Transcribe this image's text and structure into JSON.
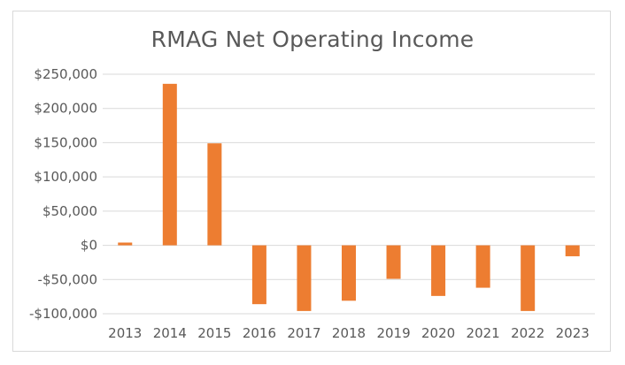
{
  "chart_data": {
    "type": "bar",
    "title": "RMAG Net Operating Income",
    "xlabel": "",
    "ylabel": "",
    "categories": [
      "2013",
      "2014",
      "2015",
      "2016",
      "2017",
      "2018",
      "2019",
      "2020",
      "2021",
      "2022",
      "2023"
    ],
    "values": [
      4000,
      236000,
      149000,
      -86000,
      -96000,
      -81000,
      -49000,
      -74000,
      -62000,
      -96000,
      -16000
    ],
    "ylim": [
      -100000,
      250000
    ],
    "yticks": [
      250000,
      200000,
      150000,
      100000,
      50000,
      0,
      -50000,
      -100000
    ],
    "ytick_labels": [
      "$250,000",
      "$200,000",
      "$150,000",
      "$100,000",
      "$50,000",
      "$0",
      "-$50,000",
      "-$100,000"
    ],
    "grid": true,
    "legend": "none",
    "bar_color": "#ED7D31"
  }
}
